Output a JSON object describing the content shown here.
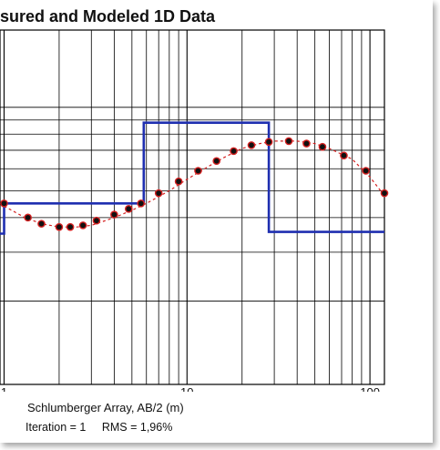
{
  "title": "sured and Modeled 1D Data",
  "status": {
    "iteration": "Iteration = 1",
    "rms": "RMS = 1,96%"
  },
  "chart_data": {
    "type": "line",
    "xscale": "log",
    "yscale": "log",
    "xlabel": "Schlumberger Array, AB/2 (m)",
    "ylabel": "",
    "xlim": [
      0.95,
      120
    ],
    "x_ticks": [
      "1",
      "10",
      "100"
    ],
    "grid": true,
    "series": [
      {
        "kind": "measured-points",
        "color": "#d42020",
        "x": [
          1.0,
          1.35,
          1.6,
          2.0,
          2.3,
          2.7,
          3.2,
          4.0,
          4.8,
          5.6,
          7.0,
          9.0,
          11.5,
          14.5,
          18.0,
          22.5,
          28.0,
          36.0,
          45.0,
          55.0,
          72.0,
          95.0,
          120.0
        ],
        "y": [
          45,
          40,
          38,
          37,
          37,
          37.5,
          39,
          41,
          43,
          45,
          49,
          54,
          59,
          64,
          69.5,
          73,
          75,
          75.5,
          74,
          72,
          67,
          59,
          49
        ]
      },
      {
        "kind": "calculated-curve",
        "color": "#d42020",
        "style": "dashed",
        "x": [
          1.0,
          1.3,
          1.6,
          2.0,
          2.5,
          3.0,
          4.0,
          5.0,
          6.0,
          8.0,
          10.0,
          13.0,
          16.0,
          20.0,
          25.0,
          30.0,
          40.0,
          50.0,
          60.0,
          80.0,
          100.0,
          120.0
        ],
        "y": [
          44,
          40,
          38,
          37,
          37,
          37.5,
          40,
          42.5,
          45,
          50,
          55,
          61,
          66,
          71,
          74,
          75.5,
          75.5,
          74,
          71,
          65,
          56,
          48
        ]
      },
      {
        "kind": "layered-model",
        "color": "#1f2fb0",
        "x": [
          0.95,
          1.0,
          1.0,
          5.8,
          5.8,
          28.0,
          28.0,
          120.0
        ],
        "y": [
          35,
          35,
          45,
          45,
          88,
          88,
          35.5,
          35.5
        ]
      }
    ]
  }
}
